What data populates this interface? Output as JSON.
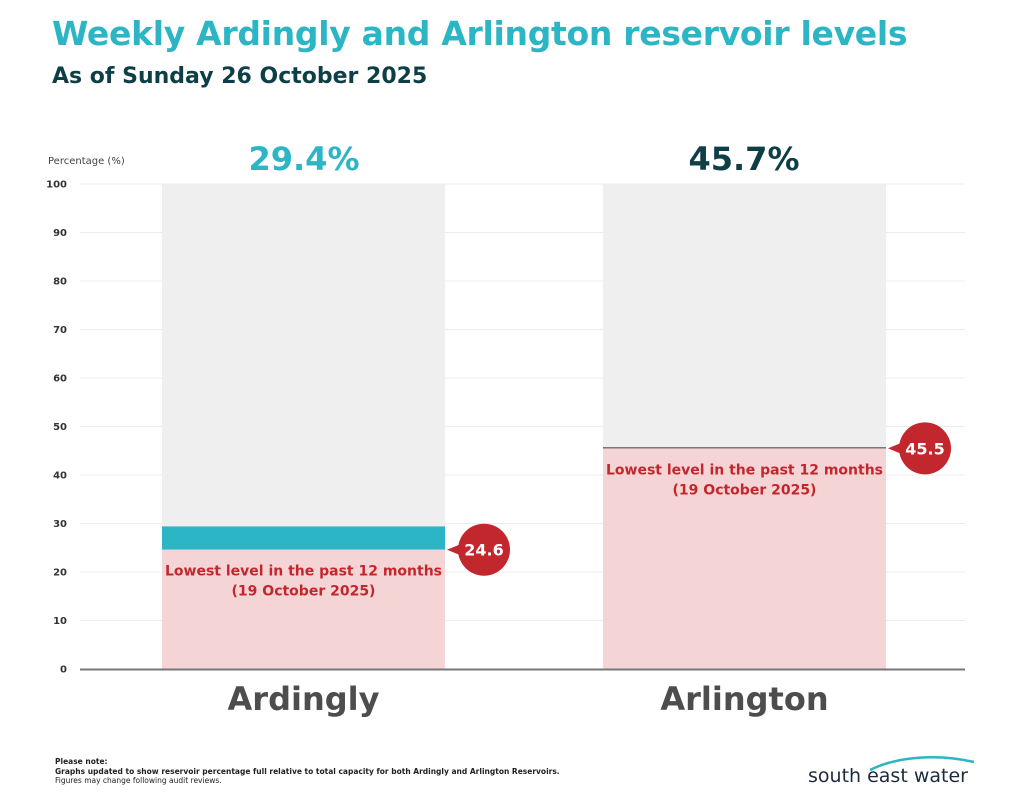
{
  "header": {
    "title": "Weekly Ardingly and Arlington reservoir levels",
    "subtitle": "As of Sunday 26 October 2025"
  },
  "colors": {
    "ardingly_fill": "#2cb5c4",
    "arlington_pct": "#0e3f47",
    "low_band": "#f4d4d4",
    "background_bar": "#efefef",
    "marker": "#c3272e",
    "annotation_text": "#c3272e"
  },
  "chart_data": {
    "type": "bar",
    "ylabel": "Percentage (%)",
    "ylim": [
      0,
      100
    ],
    "yticks": [
      0,
      10,
      20,
      30,
      40,
      50,
      60,
      70,
      80,
      90,
      100
    ],
    "grid": true,
    "categories": [
      "Ardingly",
      "Arlington"
    ],
    "values": [
      29.4,
      45.7
    ],
    "value_labels": [
      "29.4%",
      "45.7%"
    ],
    "lowest_12_months": [
      24.6,
      45.5
    ],
    "lowest_labels": [
      "24.6",
      "45.5"
    ],
    "annotation_line1": "Lowest level in the past 12 months",
    "annotation_line2": "(19 October 2025)"
  },
  "footer": {
    "note_heading": "Please note:",
    "note_line1": "Graphs updated to show reservoir percentage full relative to total capacity for both Ardingly and Arlington Reservoirs.",
    "note_line2": "Figures may change following audit reviews.",
    "logo_text": "south east water"
  }
}
